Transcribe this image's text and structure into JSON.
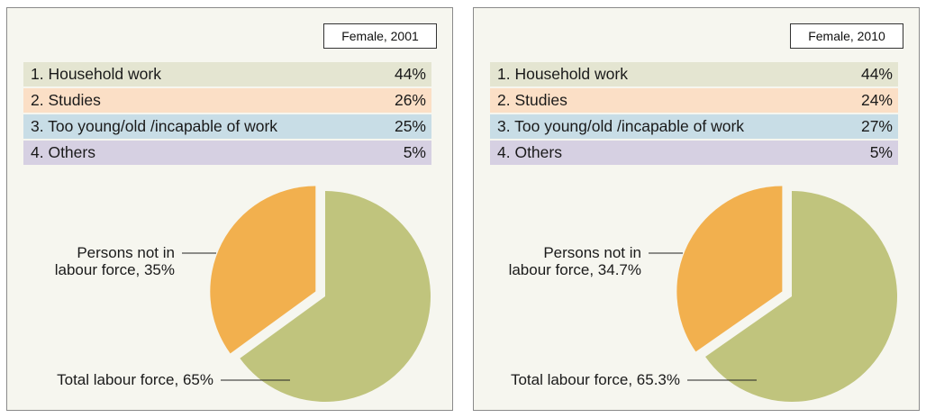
{
  "chart_data": [
    {
      "type": "pie",
      "title": "Female, 2001",
      "reasons": [
        {
          "label": "1. Household work",
          "value": "44%"
        },
        {
          "label": "2. Studies",
          "value": "26%"
        },
        {
          "label": "3. Too young/old /incapable of work",
          "value": "25%"
        },
        {
          "label": "4. Others",
          "value": "5%"
        }
      ],
      "slices": [
        {
          "value": 35,
          "color": "#f2b04e",
          "label_line1": "Persons not in",
          "label_line2": "labour force, 35%"
        },
        {
          "value": 65,
          "color": "#c0c47d",
          "label_line1": "Total labour force, 65%"
        }
      ]
    },
    {
      "type": "pie",
      "title": "Female, 2010",
      "reasons": [
        {
          "label": "1. Household work",
          "value": "44%"
        },
        {
          "label": "2. Studies",
          "value": "24%"
        },
        {
          "label": "3. Too young/old /incapable of work",
          "value": "27%"
        },
        {
          "label": "4. Others",
          "value": "5%"
        }
      ],
      "slices": [
        {
          "value": 34.7,
          "color": "#f2b04e",
          "label_line1": "Persons not in",
          "label_line2": "labour force, 34.7%"
        },
        {
          "value": 65.3,
          "color": "#c0c47d",
          "label_line1": "Total labour force, 65.3%"
        }
      ]
    }
  ]
}
